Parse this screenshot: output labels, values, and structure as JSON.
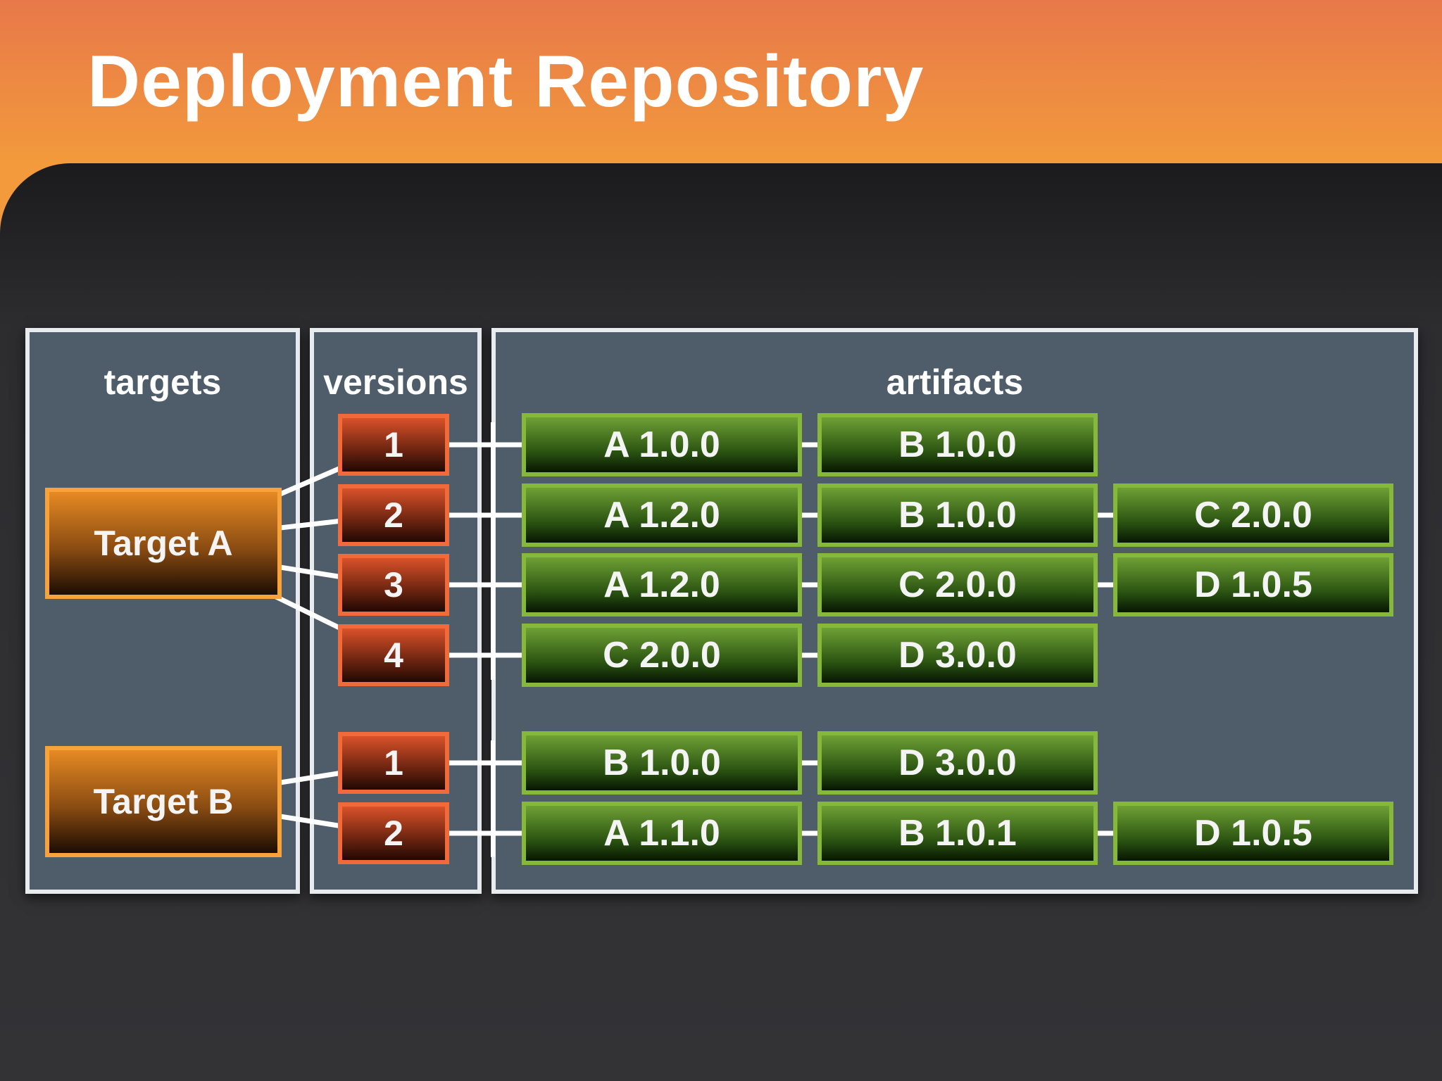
{
  "title": "Deployment Repository",
  "panels": {
    "targets": "targets",
    "versions": "versions",
    "artifacts": "artifacts"
  },
  "targets": [
    {
      "label": "Target A"
    },
    {
      "label": "Target B"
    }
  ],
  "versions": [
    {
      "label": "1",
      "target": "Target A"
    },
    {
      "label": "2",
      "target": "Target A"
    },
    {
      "label": "3",
      "target": "Target A"
    },
    {
      "label": "4",
      "target": "Target A"
    },
    {
      "label": "1",
      "target": "Target B"
    },
    {
      "label": "2",
      "target": "Target B"
    }
  ],
  "artifact_rows": [
    [
      "A 1.0.0",
      "B 1.0.0"
    ],
    [
      "A 1.2.0",
      "B 1.0.0",
      "C 2.0.0"
    ],
    [
      "A 1.2.0",
      "C 2.0.0",
      "D 1.0.5"
    ],
    [
      "C 2.0.0",
      "D 3.0.0"
    ],
    [
      "B 1.0.0",
      "D 3.0.0"
    ],
    [
      "A 1.1.0",
      "B 1.0.1",
      "D 1.0.5"
    ]
  ],
  "colors": {
    "header": "#ee8a42",
    "panel": "#4f5d6b",
    "target": "#f7a23a",
    "version": "#f06a3a",
    "artifact": "#86b83a",
    "connector": "#ffffff"
  }
}
